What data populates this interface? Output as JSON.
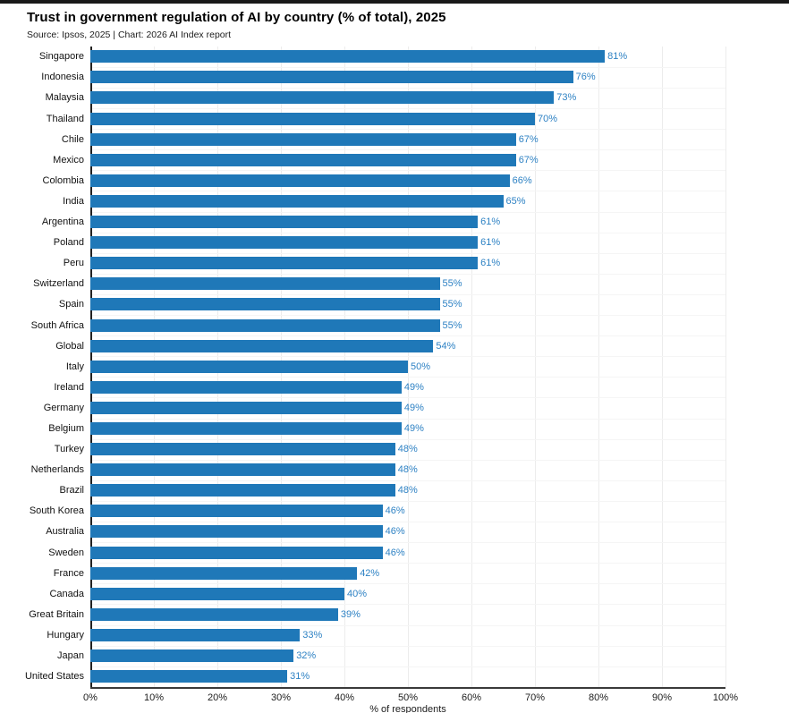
{
  "page": {
    "title": "Trust in government regulation of AI by country (% of total), 2025",
    "source": "Source: Ipsos, 2025 | Chart: 2026 AI Index report"
  },
  "chart_data": {
    "type": "bar",
    "orientation": "horizontal",
    "title": "Trust in government regulation of AI by country (% of total), 2025",
    "source": "Source: Ipsos, 2025 | Chart: 2026 AI Index report",
    "xlabel": "% of respondents",
    "xlim": [
      0,
      100
    ],
    "x_ticks": [
      "0%",
      "10%",
      "20%",
      "30%",
      "40%",
      "50%",
      "60%",
      "70%",
      "80%",
      "90%",
      "100%"
    ],
    "grid": true,
    "legend": false,
    "bar_color": "#1f78b8",
    "value_label_color": "#2e82c4",
    "categories": [
      "Singapore",
      "Indonesia",
      "Malaysia",
      "Thailand",
      "Chile",
      "Mexico",
      "Colombia",
      "India",
      "Argentina",
      "Poland",
      "Peru",
      "Switzerland",
      "Spain",
      "South Africa",
      "Global",
      "Italy",
      "Ireland",
      "Germany",
      "Belgium",
      "Turkey",
      "Netherlands",
      "Brazil",
      "South Korea",
      "Australia",
      "Sweden",
      "France",
      "Canada",
      "Great Britain",
      "Hungary",
      "Japan",
      "United States"
    ],
    "values": [
      81,
      76,
      73,
      70,
      67,
      67,
      66,
      65,
      61,
      61,
      61,
      55,
      55,
      55,
      54,
      50,
      49,
      49,
      49,
      48,
      48,
      48,
      46,
      46,
      46,
      42,
      40,
      39,
      33,
      32,
      31
    ],
    "value_labels": [
      "81%",
      "76%",
      "73%",
      "70%",
      "67%",
      "67%",
      "66%",
      "65%",
      "61%",
      "61%",
      "61%",
      "55%",
      "55%",
      "55%",
      "54%",
      "50%",
      "49%",
      "49%",
      "49%",
      "48%",
      "48%",
      "48%",
      "46%",
      "46%",
      "46%",
      "42%",
      "40%",
      "39%",
      "33%",
      "32%",
      "31%"
    ]
  }
}
